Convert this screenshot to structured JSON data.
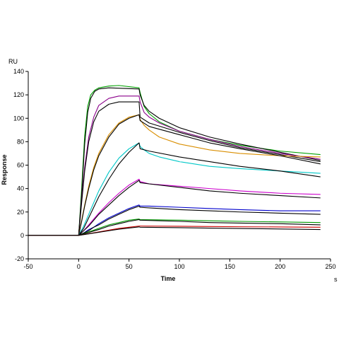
{
  "chart_data": {
    "type": "line",
    "title": "",
    "xlabel": "Time",
    "ylabel": "Response",
    "x_unit": "s",
    "y_unit": "RU",
    "xlim": [
      -50,
      250
    ],
    "ylim": [
      -20,
      140
    ],
    "xticks": [
      -50,
      0,
      50,
      100,
      150,
      200,
      250
    ],
    "yticks": [
      -20,
      0,
      20,
      40,
      60,
      80,
      100,
      120,
      140
    ],
    "grid": false,
    "legend": "none",
    "association_start_s": 0,
    "dissociation_start_s": 60,
    "end_s": 240,
    "series": [
      {
        "color": "#00a000",
        "points": [
          [
            -50,
            0
          ],
          [
            0,
            0
          ],
          [
            3,
            40
          ],
          [
            6,
            85
          ],
          [
            9,
            110
          ],
          [
            12,
            120
          ],
          [
            16,
            124
          ],
          [
            20,
            126
          ],
          [
            30,
            127.5
          ],
          [
            40,
            128
          ],
          [
            60,
            126
          ],
          [
            61,
            122
          ],
          [
            65,
            110
          ],
          [
            70,
            104
          ],
          [
            80,
            97
          ],
          [
            100,
            89
          ],
          [
            130,
            82
          ],
          [
            160,
            77
          ],
          [
            200,
            72
          ],
          [
            240,
            69
          ]
        ]
      },
      {
        "color": "#000000",
        "points": [
          [
            -50,
            0
          ],
          [
            0,
            0
          ],
          [
            3,
            35
          ],
          [
            6,
            78
          ],
          [
            9,
            105
          ],
          [
            12,
            117
          ],
          [
            16,
            123
          ],
          [
            20,
            125
          ],
          [
            30,
            126
          ],
          [
            60,
            125
          ],
          [
            61,
            120
          ],
          [
            65,
            111
          ],
          [
            70,
            106
          ],
          [
            80,
            100
          ],
          [
            100,
            92
          ],
          [
            130,
            84
          ],
          [
            160,
            78
          ],
          [
            200,
            71
          ],
          [
            240,
            64
          ]
        ]
      },
      {
        "color": "#8b008b",
        "points": [
          [
            -50,
            0
          ],
          [
            0,
            0
          ],
          [
            3,
            30
          ],
          [
            6,
            58
          ],
          [
            10,
            84
          ],
          [
            15,
            101
          ],
          [
            20,
            111
          ],
          [
            30,
            117
          ],
          [
            40,
            119
          ],
          [
            60,
            119
          ],
          [
            61,
            114
          ],
          [
            65,
            105
          ],
          [
            70,
            101
          ],
          [
            80,
            96
          ],
          [
            100,
            89
          ],
          [
            130,
            82
          ],
          [
            160,
            76
          ],
          [
            200,
            70
          ],
          [
            240,
            65
          ]
        ]
      },
      {
        "color": "#000000",
        "points": [
          [
            -50,
            0
          ],
          [
            0,
            0
          ],
          [
            3,
            28
          ],
          [
            6,
            55
          ],
          [
            10,
            80
          ],
          [
            15,
            97
          ],
          [
            20,
            106
          ],
          [
            30,
            112
          ],
          [
            40,
            114
          ],
          [
            60,
            114
          ],
          [
            61,
            101
          ],
          [
            70,
            96
          ],
          [
            100,
            88
          ],
          [
            130,
            81
          ],
          [
            160,
            75
          ],
          [
            200,
            69
          ],
          [
            240,
            63
          ]
        ]
      },
      {
        "color": "#d98e00",
        "points": [
          [
            -50,
            0
          ],
          [
            0,
            0
          ],
          [
            3,
            13
          ],
          [
            6,
            26
          ],
          [
            10,
            42
          ],
          [
            15,
            58
          ],
          [
            20,
            70
          ],
          [
            30,
            86
          ],
          [
            40,
            96
          ],
          [
            50,
            101
          ],
          [
            60,
            103
          ],
          [
            61,
            99
          ],
          [
            65,
            94
          ],
          [
            70,
            90
          ],
          [
            80,
            84
          ],
          [
            100,
            78
          ],
          [
            130,
            73
          ],
          [
            160,
            70
          ],
          [
            200,
            68
          ],
          [
            240,
            67
          ]
        ]
      },
      {
        "color": "#000000",
        "points": [
          [
            -50,
            0
          ],
          [
            0,
            0
          ],
          [
            3,
            12
          ],
          [
            6,
            25
          ],
          [
            10,
            40
          ],
          [
            15,
            56
          ],
          [
            20,
            68
          ],
          [
            30,
            84
          ],
          [
            40,
            95
          ],
          [
            50,
            100
          ],
          [
            60,
            103
          ],
          [
            61,
            98
          ],
          [
            70,
            93
          ],
          [
            100,
            86
          ],
          [
            130,
            79
          ],
          [
            160,
            74
          ],
          [
            200,
            68
          ],
          [
            240,
            61
          ]
        ]
      },
      {
        "color": "#00c8c8",
        "points": [
          [
            -50,
            0
          ],
          [
            0,
            0
          ],
          [
            5,
            8
          ],
          [
            10,
            18
          ],
          [
            15,
            28
          ],
          [
            20,
            38
          ],
          [
            30,
            54
          ],
          [
            40,
            66
          ],
          [
            50,
            74
          ],
          [
            60,
            79
          ],
          [
            61,
            76
          ],
          [
            65,
            73
          ],
          [
            70,
            70
          ],
          [
            80,
            67
          ],
          [
            100,
            63
          ],
          [
            130,
            59
          ],
          [
            160,
            57
          ],
          [
            200,
            55
          ],
          [
            240,
            53
          ]
        ]
      },
      {
        "color": "#000000",
        "points": [
          [
            -50,
            0
          ],
          [
            0,
            0
          ],
          [
            5,
            6
          ],
          [
            10,
            15
          ],
          [
            15,
            24
          ],
          [
            20,
            33
          ],
          [
            30,
            48
          ],
          [
            40,
            61
          ],
          [
            50,
            71
          ],
          [
            60,
            79
          ],
          [
            61,
            74
          ],
          [
            70,
            72
          ],
          [
            100,
            67
          ],
          [
            130,
            63
          ],
          [
            160,
            59
          ],
          [
            200,
            55
          ],
          [
            240,
            50
          ]
        ]
      },
      {
        "color": "#cc00cc",
        "points": [
          [
            -50,
            0
          ],
          [
            0,
            0
          ],
          [
            5,
            4
          ],
          [
            10,
            9
          ],
          [
            15,
            14
          ],
          [
            20,
            19
          ],
          [
            30,
            28
          ],
          [
            40,
            36
          ],
          [
            50,
            43
          ],
          [
            60,
            48
          ],
          [
            61,
            46
          ],
          [
            70,
            44
          ],
          [
            100,
            42
          ],
          [
            130,
            40
          ],
          [
            160,
            38
          ],
          [
            200,
            36
          ],
          [
            240,
            35
          ]
        ]
      },
      {
        "color": "#000000",
        "points": [
          [
            -50,
            0
          ],
          [
            0,
            0
          ],
          [
            5,
            4
          ],
          [
            10,
            8
          ],
          [
            15,
            13
          ],
          [
            20,
            18
          ],
          [
            30,
            26
          ],
          [
            40,
            34
          ],
          [
            50,
            41
          ],
          [
            60,
            47
          ],
          [
            61,
            45
          ],
          [
            70,
            44
          ],
          [
            100,
            41
          ],
          [
            130,
            38
          ],
          [
            160,
            36
          ],
          [
            200,
            34
          ],
          [
            240,
            32
          ]
        ]
      },
      {
        "color": "#0000cc",
        "points": [
          [
            -50,
            0
          ],
          [
            0,
            0
          ],
          [
            5,
            2
          ],
          [
            10,
            5
          ],
          [
            15,
            7
          ],
          [
            20,
            10
          ],
          [
            30,
            15
          ],
          [
            40,
            19
          ],
          [
            50,
            23
          ],
          [
            60,
            26
          ],
          [
            61,
            25
          ],
          [
            70,
            25
          ],
          [
            100,
            24
          ],
          [
            130,
            23
          ],
          [
            160,
            22
          ],
          [
            200,
            21
          ],
          [
            240,
            21
          ]
        ]
      },
      {
        "color": "#000000",
        "points": [
          [
            -50,
            0
          ],
          [
            0,
            0
          ],
          [
            5,
            2
          ],
          [
            10,
            4
          ],
          [
            15,
            7
          ],
          [
            20,
            9
          ],
          [
            30,
            14
          ],
          [
            40,
            18
          ],
          [
            50,
            22
          ],
          [
            60,
            25
          ],
          [
            61,
            24
          ],
          [
            70,
            23.5
          ],
          [
            100,
            22
          ],
          [
            130,
            21
          ],
          [
            160,
            20
          ],
          [
            200,
            19
          ],
          [
            240,
            18
          ]
        ]
      },
      {
        "color": "#009900",
        "points": [
          [
            -50,
            0
          ],
          [
            0,
            0
          ],
          [
            10,
            3
          ],
          [
            20,
            6
          ],
          [
            30,
            9
          ],
          [
            40,
            11
          ],
          [
            50,
            13
          ],
          [
            60,
            14
          ],
          [
            61,
            13.5
          ],
          [
            100,
            13
          ],
          [
            130,
            12.5
          ],
          [
            160,
            12
          ],
          [
            200,
            11.5
          ],
          [
            240,
            11
          ]
        ]
      },
      {
        "color": "#000000",
        "points": [
          [
            -50,
            0
          ],
          [
            0,
            0
          ],
          [
            10,
            2.5
          ],
          [
            20,
            5
          ],
          [
            30,
            8
          ],
          [
            40,
            10
          ],
          [
            50,
            12
          ],
          [
            60,
            13.5
          ],
          [
            61,
            13
          ],
          [
            100,
            12
          ],
          [
            130,
            11
          ],
          [
            160,
            10.5
          ],
          [
            200,
            10
          ],
          [
            240,
            9
          ]
        ]
      },
      {
        "color": "#cc0000",
        "points": [
          [
            -50,
            0
          ],
          [
            0,
            0
          ],
          [
            10,
            1.5
          ],
          [
            20,
            3
          ],
          [
            30,
            4.5
          ],
          [
            40,
            6
          ],
          [
            50,
            7
          ],
          [
            60,
            8
          ],
          [
            61,
            8
          ],
          [
            100,
            7.8
          ],
          [
            130,
            7.6
          ],
          [
            160,
            7.4
          ],
          [
            200,
            7.2
          ],
          [
            240,
            7
          ]
        ]
      },
      {
        "color": "#000000",
        "points": [
          [
            -50,
            0
          ],
          [
            0,
            0
          ],
          [
            10,
            1.3
          ],
          [
            20,
            2.7
          ],
          [
            30,
            4
          ],
          [
            40,
            5.3
          ],
          [
            50,
            6.3
          ],
          [
            60,
            7.3
          ],
          [
            61,
            7
          ],
          [
            100,
            6.6
          ],
          [
            130,
            6.2
          ],
          [
            160,
            5.9
          ],
          [
            200,
            5.5
          ],
          [
            240,
            5
          ]
        ]
      }
    ]
  }
}
